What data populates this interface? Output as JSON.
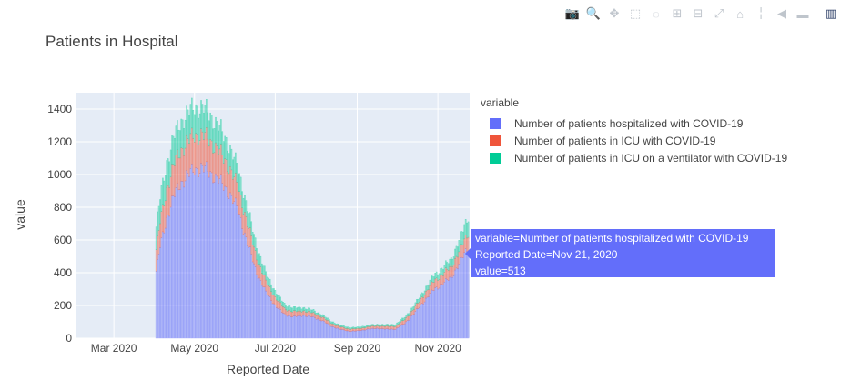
{
  "modebar": {
    "icons": [
      "camera-icon",
      "zoom-icon",
      "pan-icon",
      "box-select-icon",
      "lasso-icon",
      "zoom-in-icon",
      "zoom-out-icon",
      "autoscale-icon",
      "reset-axes-icon",
      "spike-lines-icon",
      "hover-closest-icon",
      "hover-compare-icon",
      "plotly-logo-icon"
    ],
    "glyphs": [
      "📷",
      "🔍",
      "✥",
      "⬚",
      "◌",
      "⊞",
      "⊟",
      "⤢",
      "⌂",
      "╎",
      "◀",
      "▬",
      "▥"
    ]
  },
  "chart_data": {
    "type": "bar",
    "barmode": "stack",
    "title": "Patients in Hospital",
    "xlabel": "Reported Date",
    "ylabel": "value",
    "ylim": [
      0,
      1500
    ],
    "xlim": [
      "2020-02-01",
      "2020-11-25"
    ],
    "yticks": [
      0,
      200,
      400,
      600,
      800,
      1000,
      1200,
      1400
    ],
    "xticks": [
      {
        "date": "2020-03-01",
        "label": "Mar 2020"
      },
      {
        "date": "2020-05-01",
        "label": "May 2020"
      },
      {
        "date": "2020-07-01",
        "label": "Jul 2020"
      },
      {
        "date": "2020-09-01",
        "label": "Sep 2020"
      },
      {
        "date": "2020-11-01",
        "label": "Nov 2020"
      }
    ],
    "legend_title": "variable",
    "legend_position": "right",
    "series": [
      {
        "name": "Number of patients hospitalized with COVID-19",
        "color": "#636efa",
        "knots": [
          [
            "2020-04-02",
            410
          ],
          [
            "2020-04-05",
            560
          ],
          [
            "2020-04-10",
            730
          ],
          [
            "2020-04-15",
            860
          ],
          [
            "2020-04-20",
            940
          ],
          [
            "2020-04-25",
            990
          ],
          [
            "2020-05-01",
            1030
          ],
          [
            "2020-05-07",
            1040
          ],
          [
            "2020-05-13",
            1010
          ],
          [
            "2020-05-20",
            960
          ],
          [
            "2020-05-27",
            890
          ],
          [
            "2020-06-03",
            780
          ],
          [
            "2020-06-10",
            580
          ],
          [
            "2020-06-17",
            400
          ],
          [
            "2020-06-24",
            280
          ],
          [
            "2020-07-01",
            200
          ],
          [
            "2020-07-08",
            145
          ],
          [
            "2020-07-15",
            130
          ],
          [
            "2020-07-22",
            140
          ],
          [
            "2020-07-29",
            130
          ],
          [
            "2020-08-05",
            110
          ],
          [
            "2020-08-12",
            75
          ],
          [
            "2020-08-19",
            55
          ],
          [
            "2020-08-26",
            42
          ],
          [
            "2020-09-02",
            45
          ],
          [
            "2020-09-09",
            55
          ],
          [
            "2020-09-16",
            60
          ],
          [
            "2020-09-23",
            55
          ],
          [
            "2020-09-30",
            55
          ],
          [
            "2020-10-07",
            90
          ],
          [
            "2020-10-14",
            150
          ],
          [
            "2020-10-21",
            220
          ],
          [
            "2020-10-28",
            290
          ],
          [
            "2020-11-04",
            330
          ],
          [
            "2020-11-11",
            370
          ],
          [
            "2020-11-18",
            470
          ],
          [
            "2020-11-21",
            513
          ],
          [
            "2020-11-24",
            560
          ]
        ]
      },
      {
        "name": "Number of patients in ICU with COVID-19",
        "color": "#ef553b",
        "knots": [
          [
            "2020-04-02",
            130
          ],
          [
            "2020-04-10",
            180
          ],
          [
            "2020-04-20",
            200
          ],
          [
            "2020-05-01",
            210
          ],
          [
            "2020-05-13",
            195
          ],
          [
            "2020-05-27",
            160
          ],
          [
            "2020-06-10",
            120
          ],
          [
            "2020-06-24",
            65
          ],
          [
            "2020-07-08",
            35
          ],
          [
            "2020-07-22",
            28
          ],
          [
            "2020-08-05",
            22
          ],
          [
            "2020-08-19",
            15
          ],
          [
            "2020-09-02",
            13
          ],
          [
            "2020-09-16",
            15
          ],
          [
            "2020-09-30",
            18
          ],
          [
            "2020-10-14",
            30
          ],
          [
            "2020-10-28",
            50
          ],
          [
            "2020-11-11",
            65
          ],
          [
            "2020-11-24",
            85
          ]
        ]
      },
      {
        "name": "Number of patients in ICU on a ventilator with COVID-19",
        "color": "#00cc96",
        "knots": [
          [
            "2020-04-02",
            140
          ],
          [
            "2020-04-10",
            165
          ],
          [
            "2020-04-20",
            175
          ],
          [
            "2020-05-01",
            175
          ],
          [
            "2020-05-13",
            160
          ],
          [
            "2020-05-27",
            130
          ],
          [
            "2020-06-10",
            95
          ],
          [
            "2020-06-24",
            50
          ],
          [
            "2020-07-08",
            28
          ],
          [
            "2020-07-22",
            20
          ],
          [
            "2020-08-05",
            15
          ],
          [
            "2020-08-19",
            10
          ],
          [
            "2020-09-02",
            9
          ],
          [
            "2020-09-16",
            10
          ],
          [
            "2020-09-30",
            12
          ],
          [
            "2020-10-14",
            20
          ],
          [
            "2020-10-28",
            35
          ],
          [
            "2020-11-11",
            45
          ],
          [
            "2020-11-24",
            100
          ]
        ]
      }
    ],
    "hover": {
      "lines": [
        "variable=Number of patients hospitalized with COVID-19",
        "Reported Date=Nov 21, 2020",
        "value=513"
      ]
    }
  }
}
